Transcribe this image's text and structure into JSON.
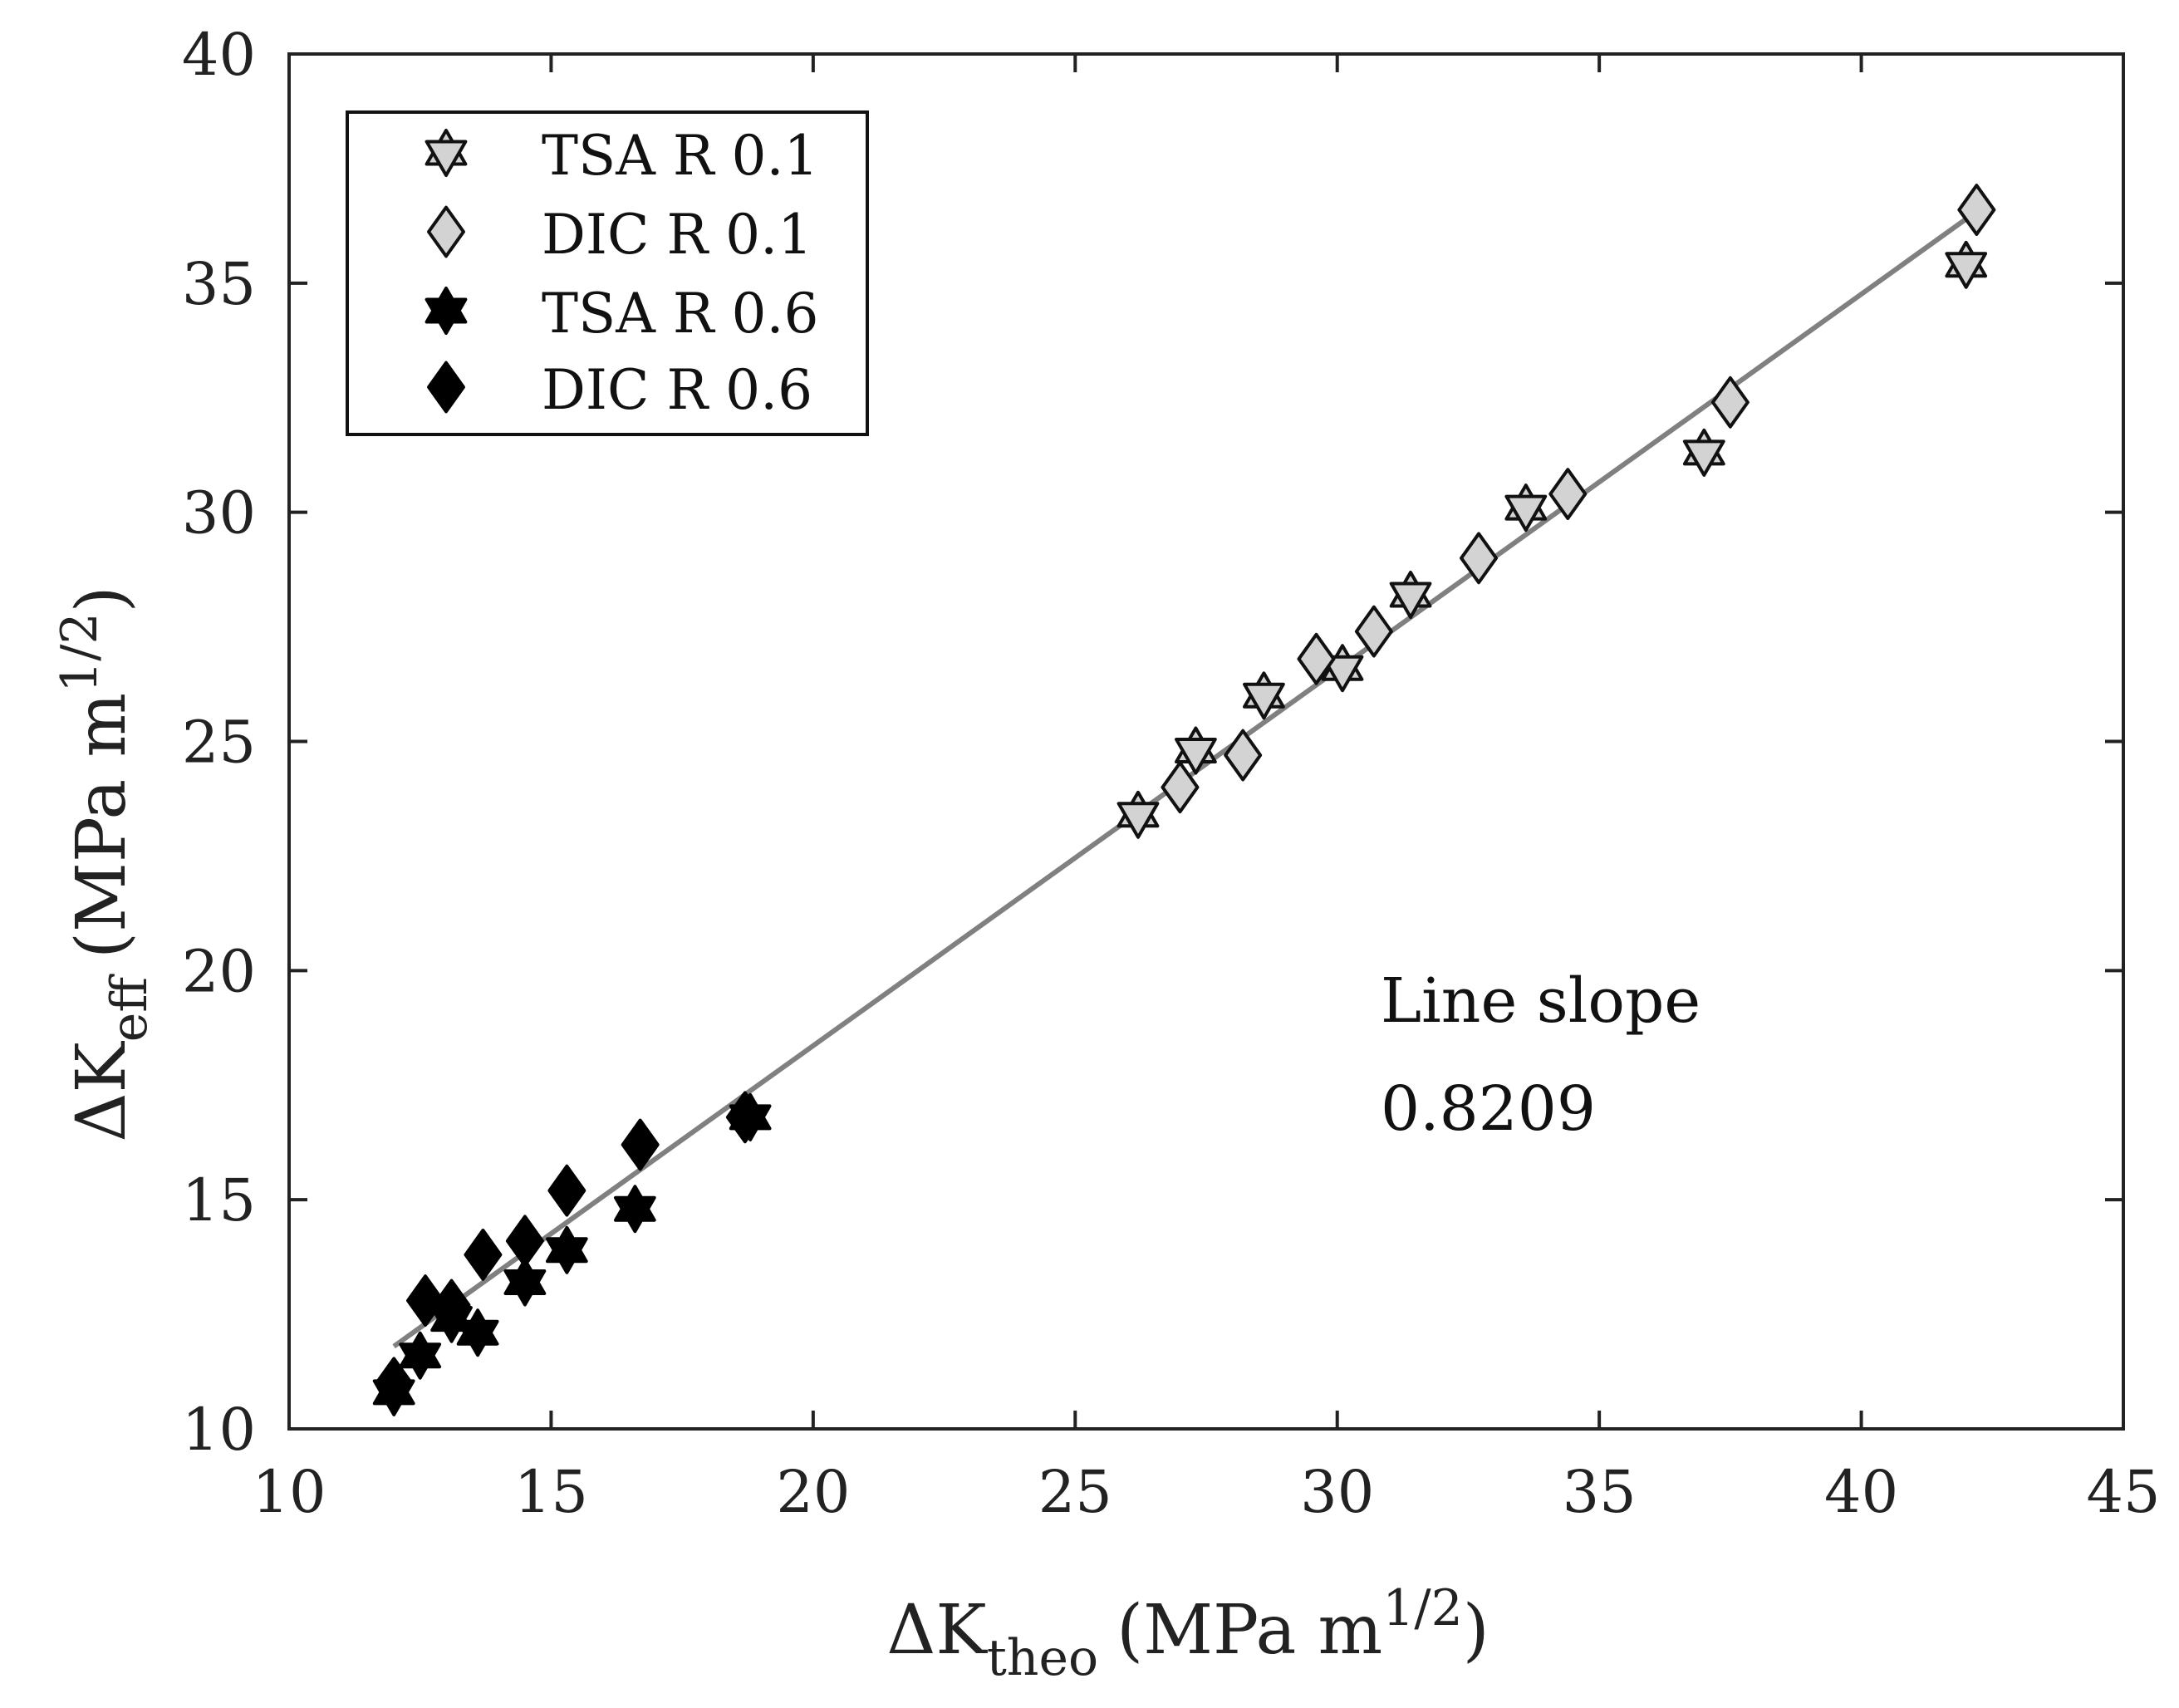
{
  "chart_data": {
    "type": "scatter",
    "title": "",
    "xlabel": {
      "main": "ΔK",
      "sub": "theo",
      "units": "(MPa m",
      "sup": "1/2",
      "close": ")"
    },
    "ylabel": {
      "main": "ΔK",
      "sub": "eff",
      "units": "(MPa m",
      "sup": "1/2",
      "close": ")"
    },
    "xlim": [
      10,
      45
    ],
    "ylim": [
      10,
      40
    ],
    "xticks": [
      "10",
      "15",
      "20",
      "25",
      "30",
      "35",
      "40",
      "45"
    ],
    "yticks": [
      "10",
      "15",
      "20",
      "25",
      "30",
      "35",
      "40"
    ],
    "grid": false,
    "legend_position": "top-left",
    "series": [
      {
        "name": "TSA R 0.1",
        "marker": "hexagram",
        "fill": "#d3d3d3",
        "stroke": "#111111",
        "points": [
          [
            26.2,
            23.4
          ],
          [
            27.3,
            24.8
          ],
          [
            28.6,
            26.0
          ],
          [
            30.1,
            26.6
          ],
          [
            31.4,
            28.2
          ],
          [
            33.6,
            30.1
          ],
          [
            37.0,
            31.3
          ],
          [
            42.0,
            35.4
          ]
        ]
      },
      {
        "name": "DIC R 0.1",
        "marker": "diamond",
        "fill": "#d3d3d3",
        "stroke": "#111111",
        "points": [
          [
            27.0,
            24.0
          ],
          [
            28.2,
            24.7
          ],
          [
            29.6,
            26.8
          ],
          [
            30.7,
            27.4
          ],
          [
            32.7,
            29.0
          ],
          [
            34.4,
            30.4
          ],
          [
            37.5,
            32.4
          ],
          [
            42.2,
            36.6
          ]
        ]
      },
      {
        "name": "TSA R 0.6",
        "marker": "hexagram",
        "fill": "#000000",
        "stroke": "#000000",
        "points": [
          [
            12.0,
            10.8
          ],
          [
            12.5,
            11.6
          ],
          [
            13.1,
            12.4
          ],
          [
            13.6,
            12.1
          ],
          [
            14.5,
            13.2
          ],
          [
            15.3,
            13.9
          ],
          [
            16.6,
            14.8
          ],
          [
            18.8,
            16.8
          ]
        ]
      },
      {
        "name": "DIC R 0.6",
        "marker": "diamond",
        "fill": "#000000",
        "stroke": "#000000",
        "points": [
          [
            12.0,
            11.0
          ],
          [
            12.6,
            12.8
          ],
          [
            13.1,
            12.7
          ],
          [
            13.7,
            13.8
          ],
          [
            14.5,
            14.1
          ],
          [
            15.3,
            15.2
          ],
          [
            16.7,
            16.2
          ],
          [
            18.7,
            16.8
          ]
        ]
      }
    ],
    "fit_line": {
      "slope": 0.8209,
      "points": [
        [
          12.0,
          11.8
        ],
        [
          42.0,
          36.4
        ]
      ],
      "color": "#808080"
    },
    "annotation": {
      "line1": "Line slope",
      "line2": "0.8209"
    }
  }
}
